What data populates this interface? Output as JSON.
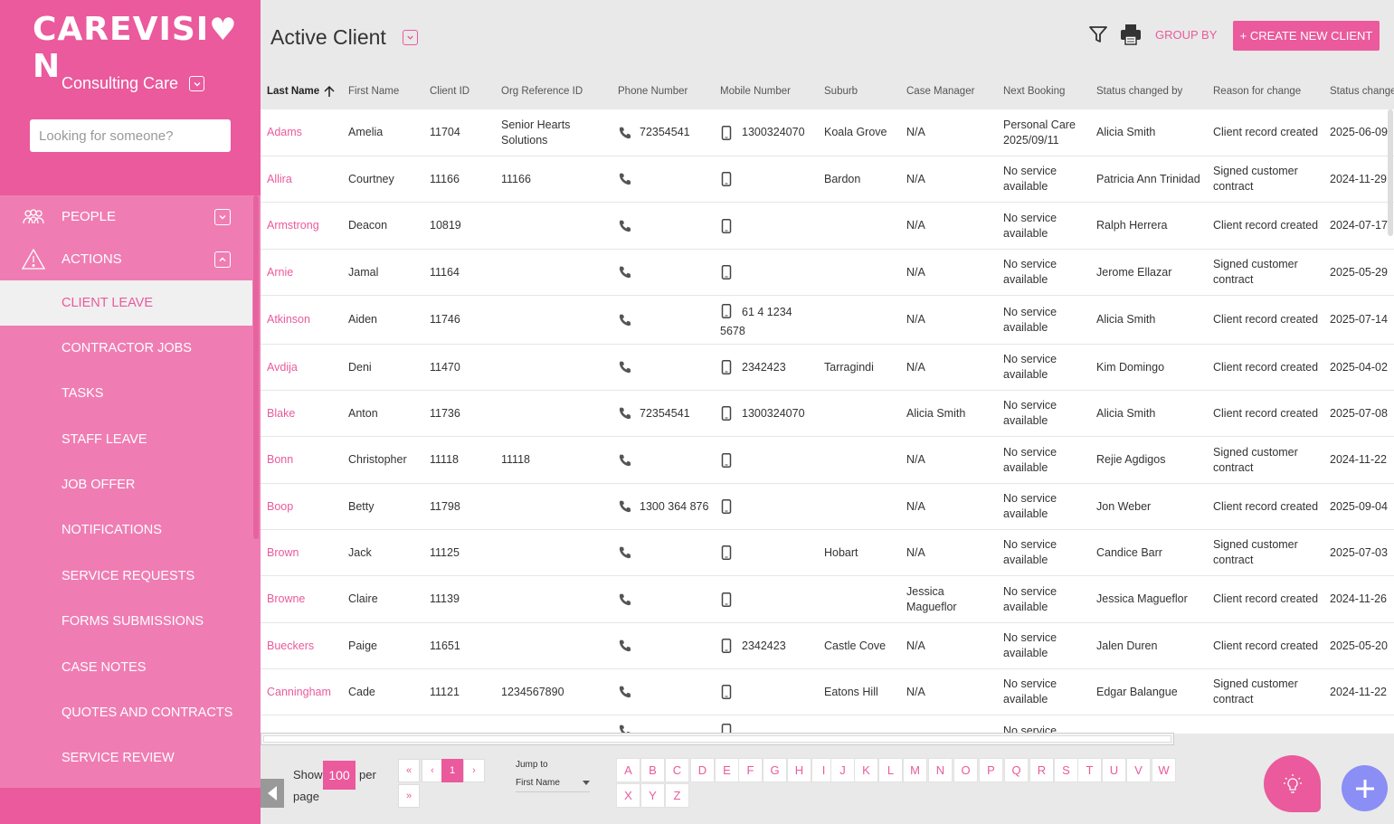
{
  "app": {
    "brand": "CAREVISI",
    "brand_end": "N",
    "accent": "#ea5a9c"
  },
  "sidebar": {
    "org_name": "Consulting Care",
    "search_placeholder": "Looking for someone?",
    "sections": [
      {
        "label": "PEOPLE",
        "icon": "people-icon",
        "expanded": false
      },
      {
        "label": "ACTIONS",
        "icon": "warning-icon",
        "expanded": true
      }
    ],
    "items": [
      {
        "label": "CLIENT LEAVE",
        "active": true
      },
      {
        "label": "CONTRACTOR JOBS"
      },
      {
        "label": "TASKS"
      },
      {
        "label": "STAFF LEAVE"
      },
      {
        "label": "JOB OFFER"
      },
      {
        "label": "NOTIFICATIONS"
      },
      {
        "label": "SERVICE REQUESTS"
      },
      {
        "label": "FORMS SUBMISSIONS"
      },
      {
        "label": "CASE NOTES"
      },
      {
        "label": "QUOTES AND CONTRACTS"
      },
      {
        "label": "SERVICE REVIEW"
      }
    ]
  },
  "header": {
    "title": "Active Client",
    "group_by": "GROUP BY",
    "create_button": "+ CREATE NEW CLIENT"
  },
  "table": {
    "columns": [
      "Last Name",
      "First Name",
      "Client ID",
      "Org Reference ID",
      "Phone Number",
      "Mobile Number",
      "Suburb",
      "Case Manager",
      "Next Booking",
      "Status changed by",
      "Reason for change",
      "Status change"
    ],
    "sorted_column": "Last Name",
    "rows": [
      {
        "last": "Adams",
        "first": "Amelia",
        "id": "11704",
        "org": "Senior Hearts Solutions",
        "phone": "72354541",
        "mobile": "1300324070",
        "suburb": "Koala Grove",
        "cm": "N/A",
        "booking": "Personal Care 2025/09/11",
        "by": "Alicia Smith",
        "reason": "Client record created",
        "date": "2025-06-09"
      },
      {
        "last": "Allira",
        "first": "Courtney",
        "id": "11166",
        "org": "11166",
        "phone": "",
        "mobile": "",
        "suburb": "Bardon",
        "cm": "N/A",
        "booking": "No service available",
        "by": "Patricia Ann Trinidad",
        "reason": "Signed customer contract",
        "date": "2024-11-29"
      },
      {
        "last": "Armstrong",
        "first": "Deacon",
        "id": "10819",
        "org": "",
        "phone": "",
        "mobile": "",
        "suburb": "",
        "cm": "N/A",
        "booking": "No service available",
        "by": "Ralph Herrera",
        "reason": "Client record created",
        "date": "2024-07-17"
      },
      {
        "last": "Arnie",
        "first": "Jamal",
        "id": "11164",
        "org": "",
        "phone": "",
        "mobile": "",
        "suburb": "",
        "cm": "N/A",
        "booking": "No service available",
        "by": "Jerome Ellazar",
        "reason": "Signed customer contract",
        "date": "2025-05-29"
      },
      {
        "last": "Atkinson",
        "first": "Aiden",
        "id": "11746",
        "org": "",
        "phone": "",
        "mobile": "61 4 1234 5678",
        "suburb": "",
        "cm": "N/A",
        "booking": "No service available",
        "by": "Alicia Smith",
        "reason": "Client record created",
        "date": "2025-07-14"
      },
      {
        "last": "Avdija",
        "first": "Deni",
        "id": "11470",
        "org": "",
        "phone": "",
        "mobile": "2342423",
        "suburb": "Tarragindi",
        "cm": "N/A",
        "booking": "No service available",
        "by": "Kim Domingo",
        "reason": "Client record created",
        "date": "2025-04-02"
      },
      {
        "last": "Blake",
        "first": "Anton",
        "id": "11736",
        "org": "",
        "phone": "72354541",
        "mobile": "1300324070",
        "suburb": "",
        "cm": "Alicia Smith",
        "booking": "No service available",
        "by": "Alicia Smith",
        "reason": "Client record created",
        "date": "2025-07-08"
      },
      {
        "last": "Bonn",
        "first": "Christopher",
        "id": "11118",
        "org": "11118",
        "phone": "",
        "mobile": "",
        "suburb": "",
        "cm": "N/A",
        "booking": "No service available",
        "by": "Rejie Agdigos",
        "reason": "Signed customer contract",
        "date": "2024-11-22"
      },
      {
        "last": "Boop",
        "first": "Betty",
        "id": "11798",
        "org": "",
        "phone": "1300 364 876",
        "mobile": "",
        "suburb": "",
        "cm": "N/A",
        "booking": "No service available",
        "by": "Jon Weber",
        "reason": "Client record created",
        "date": "2025-09-04"
      },
      {
        "last": "Brown",
        "first": "Jack",
        "id": "11125",
        "org": "",
        "phone": "",
        "mobile": "",
        "suburb": "Hobart",
        "cm": "N/A",
        "booking": "No service available",
        "by": "Candice Barr",
        "reason": "Signed customer contract",
        "date": "2025-07-03"
      },
      {
        "last": "Browne",
        "first": "Claire",
        "id": "11139",
        "org": "",
        "phone": "",
        "mobile": "",
        "suburb": "",
        "cm": "Jessica Magueflor",
        "booking": "No service available",
        "by": "Jessica Magueflor",
        "reason": "Client record created",
        "date": "2024-11-26"
      },
      {
        "last": "Bueckers",
        "first": "Paige",
        "id": "11651",
        "org": "",
        "phone": "",
        "mobile": "2342423",
        "suburb": "Castle Cove",
        "cm": "N/A",
        "booking": "No service available",
        "by": "Jalen Duren",
        "reason": "Client record created",
        "date": "2025-05-20"
      },
      {
        "last": "Canningham",
        "first": "Cade",
        "id": "11121",
        "org": "1234567890",
        "phone": "",
        "mobile": "",
        "suburb": "Eatons Hill",
        "cm": "N/A",
        "booking": "No service available",
        "by": "Edgar Balangue",
        "reason": "Signed customer contract",
        "date": "2024-11-22"
      },
      {
        "last": "",
        "first": "",
        "id": "",
        "org": "",
        "phone": "",
        "mobile": "",
        "suburb": "",
        "cm": "",
        "booking": "No service",
        "by": "",
        "reason": "",
        "date": ""
      }
    ]
  },
  "pagination": {
    "show_label": "Show",
    "per_page": "100",
    "per_label": "per",
    "page_label": "page",
    "first": "«",
    "prev": "‹",
    "current": "1",
    "next": "›",
    "last": "»",
    "jump_label": "Jump to",
    "jump_value": "First Name",
    "letters": [
      "A",
      "B",
      "C",
      "D",
      "E",
      "F",
      "G",
      "H",
      "I",
      "J",
      "K",
      "L",
      "M",
      "N",
      "O",
      "P",
      "Q",
      "R",
      "S",
      "T",
      "U",
      "V",
      "W",
      "X",
      "Y",
      "Z"
    ]
  }
}
